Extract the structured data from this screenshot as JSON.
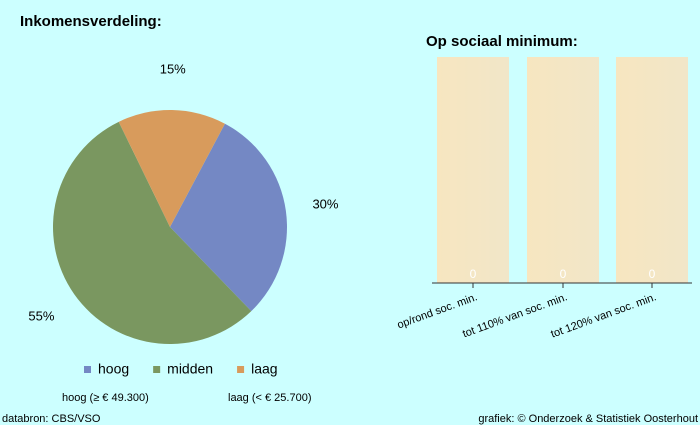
{
  "chart_data": [
    {
      "type": "pie",
      "title": "Inkomensverdeling:",
      "categories": [
        "hoog",
        "midden",
        "laag"
      ],
      "values": [
        30,
        55,
        15
      ],
      "value_labels": [
        "30%",
        "55%",
        "15%"
      ],
      "colors": [
        "#7488c4",
        "#7a9760",
        "#d89b5c"
      ],
      "notes": [
        "hoog (≥ € 49.300)",
        "laag (< € 25.700)"
      ],
      "legend": "bottom"
    },
    {
      "type": "bar",
      "title": "Op sociaal minimum:",
      "categories": [
        "op/rond soc. min.",
        "tot 110% van soc. min.",
        "tot 120% van soc. min."
      ],
      "values": [
        0,
        0,
        0
      ],
      "color": "#f3e3bd"
    }
  ],
  "footer": {
    "source": "databron: CBS/VSO",
    "credit": "grafiek: © Onderzoek & Statistiek Oosterhout"
  }
}
